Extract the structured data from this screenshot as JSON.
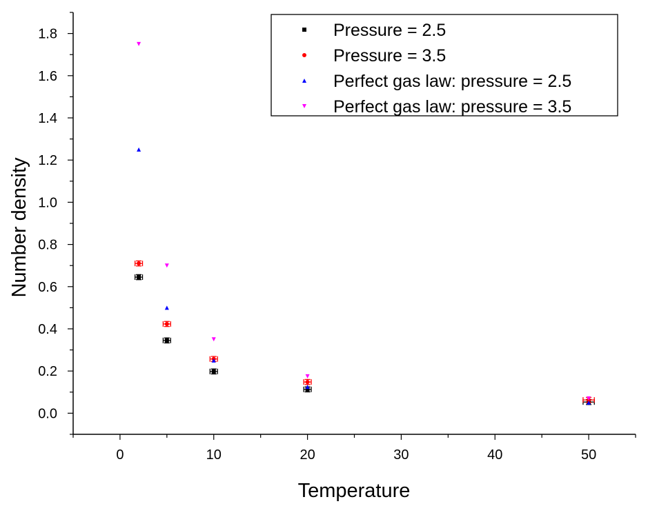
{
  "chart_data": {
    "type": "scatter",
    "title": "",
    "xlabel": "Temperature",
    "ylabel": "Number density",
    "xlim": [
      -5,
      55
    ],
    "ylim": [
      -0.1,
      1.9
    ],
    "xticks": [
      0,
      10,
      20,
      30,
      40,
      50
    ],
    "yticks": [
      0.0,
      0.2,
      0.4,
      0.6,
      0.8,
      1.0,
      1.2,
      1.4,
      1.6,
      1.8
    ],
    "xtick_labels": [
      "0",
      "10",
      "20",
      "30",
      "40",
      "50"
    ],
    "ytick_labels": [
      "0.0",
      "0.2",
      "0.4",
      "0.6",
      "0.8",
      "1.0",
      "1.2",
      "1.4",
      "1.6",
      "1.8"
    ],
    "legend_position": "top-right",
    "series": [
      {
        "name": "Pressure = 2.5",
        "marker": "square",
        "color": "#000000",
        "error_bars": true,
        "x": [
          2,
          5,
          10,
          20,
          50
        ],
        "y": [
          0.645,
          0.345,
          0.198,
          0.113,
          0.053
        ],
        "xerr": [
          0.4,
          0.4,
          0.4,
          0.4,
          0.6
        ],
        "yerr": [
          0.012,
          0.012,
          0.012,
          0.012,
          0.012
        ]
      },
      {
        "name": "Pressure = 3.5",
        "marker": "circle",
        "color": "#ff0000",
        "error_bars": true,
        "x": [
          2,
          5,
          10,
          20,
          50
        ],
        "y": [
          0.71,
          0.423,
          0.257,
          0.148,
          0.063
        ],
        "xerr": [
          0.4,
          0.4,
          0.4,
          0.4,
          0.6
        ],
        "yerr": [
          0.012,
          0.012,
          0.012,
          0.012,
          0.012
        ]
      },
      {
        "name": "Perfect gas law: pressure = 2.5",
        "marker": "triangle-up",
        "color": "#0000ff",
        "error_bars": false,
        "x": [
          2,
          5,
          10,
          20,
          50
        ],
        "y": [
          1.25,
          0.5,
          0.25,
          0.125,
          0.05
        ]
      },
      {
        "name": "Perfect gas law: pressure = 3.5",
        "marker": "triangle-down",
        "color": "#ff00ff",
        "error_bars": false,
        "x": [
          2,
          5,
          10,
          20,
          50
        ],
        "y": [
          1.75,
          0.7,
          0.35,
          0.175,
          0.07
        ]
      }
    ]
  }
}
